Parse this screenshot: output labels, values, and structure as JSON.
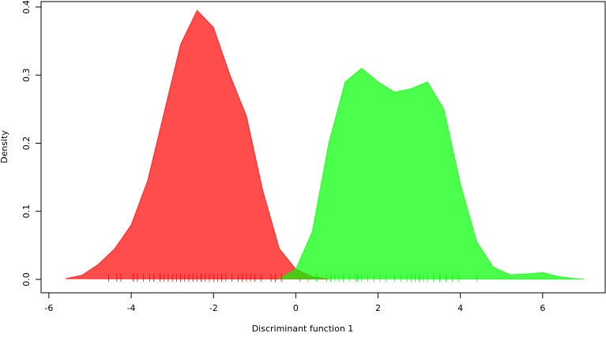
{
  "chart_data": {
    "type": "area",
    "xlabel": "Discriminant function 1",
    "ylabel": "Density",
    "x": [
      -5.6,
      -5.2,
      -4.8,
      -4.4,
      -4.0,
      -3.6,
      -3.2,
      -2.8,
      -2.4,
      -2.0,
      -1.6,
      -1.2,
      -0.8,
      -0.4,
      0,
      0.4,
      0.8,
      1.2,
      1.6,
      2.0,
      2.4,
      2.8,
      3.2,
      3.6,
      4.0,
      4.4,
      4.8,
      5.2,
      5.6,
      6.0,
      6.4,
      6.8,
      7.0
    ],
    "series": [
      {
        "color": "#ff0000",
        "values": [
          0.001,
          0.006,
          0.022,
          0.045,
          0.08,
          0.145,
          0.245,
          0.345,
          0.395,
          0.37,
          0.3,
          0.24,
          0.13,
          0.045,
          0.015,
          0.004,
          0.0005,
          null,
          null,
          null,
          null,
          null,
          null,
          null,
          null,
          null,
          null,
          null,
          null,
          null,
          null,
          null,
          null
        ],
        "rug": [
          -4.55,
          -4.35,
          -4.25,
          -3.95,
          -3.85,
          -3.7,
          -3.55,
          -3.45,
          -3.3,
          -3.2,
          -3.1,
          -3.0,
          -2.9,
          -2.8,
          -2.7,
          -2.6,
          -2.5,
          -2.4,
          -2.3,
          -2.2,
          -2.1,
          -2.0,
          -1.9,
          -1.8,
          -1.7,
          -1.55,
          -1.4,
          -1.3,
          -1.2,
          -1.1,
          -1.0,
          -0.85,
          -0.6,
          -0.5,
          -0.35,
          0.1
        ]
      },
      {
        "color": "#00ff00",
        "values": [
          null,
          null,
          null,
          null,
          null,
          null,
          null,
          null,
          null,
          null,
          null,
          null,
          null,
          0.001,
          0.015,
          0.07,
          0.2,
          0.29,
          0.31,
          0.29,
          0.275,
          0.28,
          0.29,
          0.25,
          0.14,
          0.055,
          0.018,
          0.007,
          0.008,
          0.01,
          0.004,
          0.001,
          0.0003
        ],
        "rug": [
          0.1,
          0.3,
          0.5,
          0.75,
          0.85,
          0.95,
          1.05,
          1.15,
          1.3,
          1.45,
          1.5,
          1.6,
          1.75,
          1.9,
          2.05,
          2.2,
          2.4,
          2.55,
          2.7,
          2.8,
          2.9,
          3.0,
          3.1,
          3.2,
          3.35,
          3.5,
          3.65,
          3.8,
          3.95,
          4.4
        ]
      }
    ],
    "xlim": [
      -6.19,
      7.52
    ],
    "ylim": [
      -0.0197,
      0.408
    ],
    "xticks": [
      -6,
      -4,
      -2,
      0,
      2,
      4,
      6
    ],
    "yticks": [
      {
        "value": 0,
        "label": "0.0"
      },
      0.1,
      0.2,
      0.3,
      0.4
    ]
  }
}
